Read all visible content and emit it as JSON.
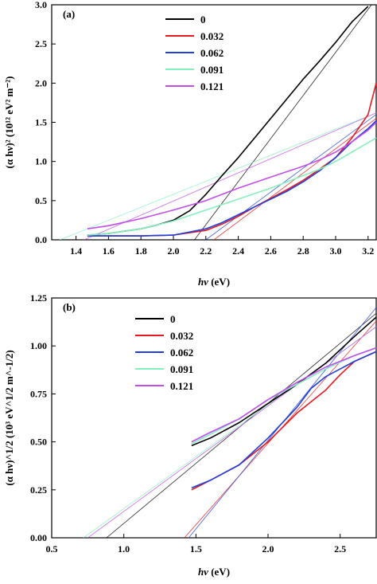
{
  "chart_data": [
    {
      "type": "line",
      "panel_label": "(a)",
      "xlabel_main": "hν",
      "xlabel_unit": " (eV)",
      "ylabel": "(α hν)² (10¹² eV² m⁻²)",
      "xlim": [
        1.25,
        3.25
      ],
      "ylim": [
        0,
        3.0
      ],
      "xticks": [
        1.4,
        1.6,
        1.8,
        2.0,
        2.2,
        2.4,
        2.6,
        2.8,
        3.0,
        3.2
      ],
      "yticks": [
        0.0,
        0.5,
        1.0,
        1.5,
        2.0,
        2.5,
        3.0
      ],
      "legend_position": "top-left",
      "series": [
        {
          "name": "0",
          "color": "#000000",
          "x": [
            1.47,
            1.6,
            1.8,
            1.9,
            2.0,
            2.1,
            2.2,
            2.3,
            2.4,
            2.5,
            2.6,
            2.7,
            2.8,
            2.9,
            3.0,
            3.1,
            3.2
          ],
          "y": [
            0.06,
            0.08,
            0.14,
            0.19,
            0.25,
            0.37,
            0.58,
            0.82,
            1.05,
            1.3,
            1.55,
            1.8,
            2.05,
            2.28,
            2.52,
            2.78,
            2.98
          ]
        },
        {
          "name": "0.032",
          "color": "#e8191f",
          "x": [
            1.47,
            1.8,
            2.0,
            2.2,
            2.3,
            2.4,
            2.5,
            2.6,
            2.7,
            2.8,
            2.9,
            3.0,
            3.1,
            3.2,
            3.25
          ],
          "y": [
            0.05,
            0.05,
            0.06,
            0.12,
            0.2,
            0.3,
            0.42,
            0.53,
            0.64,
            0.76,
            0.9,
            1.05,
            1.3,
            1.6,
            2.0
          ]
        },
        {
          "name": "0.062",
          "color": "#1f3fd8",
          "x": [
            1.47,
            1.8,
            2.0,
            2.2,
            2.3,
            2.4,
            2.5,
            2.6,
            2.7,
            2.8,
            2.9,
            3.0,
            3.1,
            3.2,
            3.25
          ],
          "y": [
            0.05,
            0.05,
            0.06,
            0.14,
            0.22,
            0.32,
            0.42,
            0.52,
            0.62,
            0.74,
            0.88,
            1.05,
            1.25,
            1.42,
            1.52
          ]
        },
        {
          "name": "0.091",
          "color": "#86f0bd",
          "x": [
            1.47,
            1.6,
            1.8,
            2.0,
            2.2,
            2.4,
            2.6,
            2.8,
            2.9,
            3.0,
            3.1,
            3.2,
            3.25
          ],
          "y": [
            0.06,
            0.08,
            0.14,
            0.24,
            0.38,
            0.52,
            0.66,
            0.82,
            0.9,
            1.0,
            1.12,
            1.24,
            1.3
          ]
        },
        {
          "name": "0.121",
          "color": "#c04ee8",
          "x": [
            1.47,
            1.6,
            1.8,
            2.0,
            2.2,
            2.4,
            2.6,
            2.8,
            2.9,
            3.0,
            3.1,
            3.2,
            3.25
          ],
          "y": [
            0.14,
            0.18,
            0.27,
            0.38,
            0.5,
            0.66,
            0.8,
            0.94,
            1.02,
            1.12,
            1.25,
            1.4,
            1.5
          ]
        }
      ],
      "fit_lines": [
        {
          "color": "#000000",
          "x": [
            2.13,
            3.25
          ],
          "y": [
            0.0,
            3.08
          ]
        },
        {
          "color": "#e8191f",
          "x": [
            2.25,
            3.25
          ],
          "y": [
            0.0,
            1.55
          ]
        },
        {
          "color": "#1f3fd8",
          "x": [
            2.2,
            3.25
          ],
          "y": [
            0.0,
            1.6
          ]
        },
        {
          "color": "#86f0bd",
          "x": [
            1.3,
            3.25
          ],
          "y": [
            0.0,
            1.62
          ]
        },
        {
          "color": "#c04ee8",
          "x": [
            1.45,
            3.25
          ],
          "y": [
            0.0,
            1.62
          ]
        }
      ]
    },
    {
      "type": "line",
      "panel_label": "(b)",
      "xlabel_main": "hν",
      "xlabel_unit": " (eV)",
      "ylabel": "(α hν)^1/2 (10³ eV^1/2 m^-1/2)",
      "xlim": [
        0.5,
        2.75
      ],
      "ylim": [
        0.0,
        1.25
      ],
      "xticks": [
        0.5,
        1.0,
        1.5,
        2.0,
        2.5
      ],
      "yticks": [
        0.0,
        0.25,
        0.5,
        0.75,
        1.0,
        1.25
      ],
      "legend_position": "top-left",
      "series": [
        {
          "name": "0",
          "color": "#000000",
          "x": [
            1.47,
            1.6,
            1.8,
            2.0,
            2.2,
            2.4,
            2.6,
            2.75
          ],
          "y": [
            0.48,
            0.52,
            0.6,
            0.7,
            0.8,
            0.91,
            1.05,
            1.15
          ]
        },
        {
          "name": "0.032",
          "color": "#e8191f",
          "x": [
            1.47,
            1.6,
            1.8,
            2.0,
            2.2,
            2.4,
            2.5,
            2.6,
            2.75
          ],
          "y": [
            0.25,
            0.3,
            0.38,
            0.5,
            0.65,
            0.77,
            0.85,
            0.92,
            0.97
          ]
        },
        {
          "name": "0.062",
          "color": "#1f3fd8",
          "x": [
            1.47,
            1.6,
            1.8,
            2.0,
            2.2,
            2.3,
            2.4,
            2.5,
            2.6,
            2.75
          ],
          "y": [
            0.26,
            0.3,
            0.38,
            0.52,
            0.68,
            0.78,
            0.84,
            0.88,
            0.92,
            0.97
          ]
        },
        {
          "name": "0.091",
          "color": "#86f0bd",
          "x": [
            1.47,
            1.6,
            1.8,
            2.0,
            2.2,
            2.4,
            2.6,
            2.75
          ],
          "y": [
            0.49,
            0.54,
            0.62,
            0.72,
            0.8,
            0.88,
            0.95,
            0.99
          ]
        },
        {
          "name": "0.121",
          "color": "#c04ee8",
          "x": [
            1.47,
            1.6,
            1.8,
            2.0,
            2.2,
            2.4,
            2.6,
            2.75
          ],
          "y": [
            0.5,
            0.55,
            0.62,
            0.72,
            0.81,
            0.89,
            0.95,
            0.99
          ]
        }
      ],
      "fit_lines": [
        {
          "color": "#000000",
          "x": [
            0.88,
            2.75
          ],
          "y": [
            0.0,
            1.17
          ]
        },
        {
          "color": "#e8191f",
          "x": [
            1.42,
            2.75
          ],
          "y": [
            0.0,
            1.13
          ]
        },
        {
          "color": "#1f3fd8",
          "x": [
            1.45,
            2.75
          ],
          "y": [
            0.0,
            1.2
          ]
        },
        {
          "color": "#86f0bd",
          "x": [
            0.72,
            2.75
          ],
          "y": [
            0.0,
            1.1
          ]
        },
        {
          "color": "#c04ee8",
          "x": [
            0.75,
            2.75
          ],
          "y": [
            0.0,
            1.1
          ]
        }
      ]
    }
  ]
}
